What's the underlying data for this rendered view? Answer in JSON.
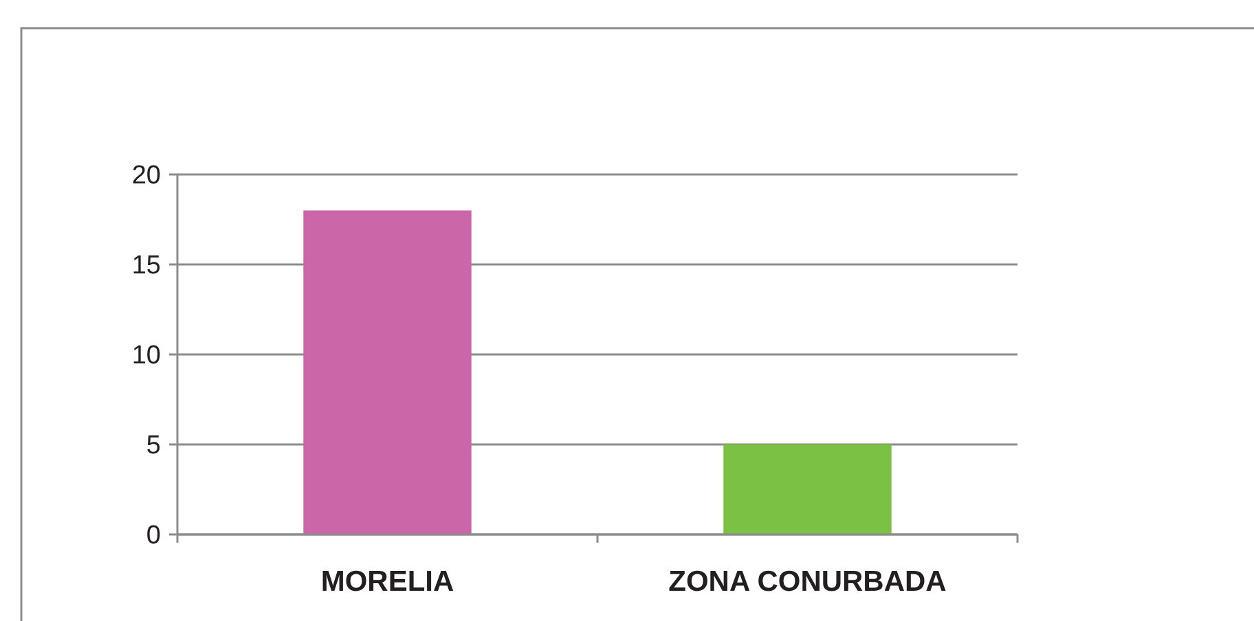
{
  "chart_data": {
    "type": "bar",
    "categories": [
      "MORELIA",
      "ZONA CONURBADA"
    ],
    "values": [
      18,
      5
    ],
    "colors": [
      "#cb67a8",
      "#7bc143"
    ],
    "ylim": [
      0,
      20
    ],
    "yticks": [
      0,
      5,
      10,
      15,
      20
    ],
    "grid": "y"
  }
}
